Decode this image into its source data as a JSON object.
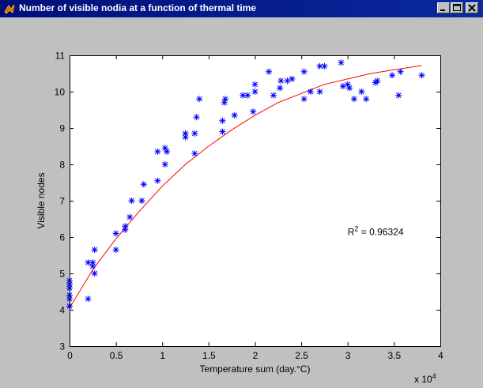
{
  "window": {
    "title": "Number of visible nodia at a function of thermal time",
    "minimize_glyph": "minimize-icon",
    "maximize_glyph": "maximize-icon",
    "close_glyph": "close-icon"
  },
  "colors": {
    "titlebar": "#0a2a9e",
    "figure_bg": "#c0c0c0",
    "axes_bg": "#ffffff",
    "points": "#0000ff",
    "fit_line": "#ff0000"
  },
  "chart_data": {
    "type": "scatter",
    "title": "",
    "xlabel": "Temperature sum (day.°C)",
    "ylabel": "Visible nodes",
    "x_multiplier_label": "x 10",
    "x_multiplier_exponent": "4",
    "xlim": [
      0,
      4
    ],
    "ylim": [
      3,
      11
    ],
    "x_ticks": [
      "0",
      "0.5",
      "1",
      "1.5",
      "2",
      "2.5",
      "3",
      "3.5",
      "4"
    ],
    "y_ticks": [
      "3",
      "4",
      "5",
      "6",
      "7",
      "8",
      "9",
      "10",
      "11"
    ],
    "grid": false,
    "annotation": {
      "text_prefix": "R",
      "superscript": "2",
      "text_suffix": " = 0.96324",
      "x": 3.0,
      "y": 6.05
    },
    "series": [
      {
        "marker": "asterisk",
        "points": [
          [
            0.0,
            4.1
          ],
          [
            0.0,
            4.3
          ],
          [
            0.0,
            4.4
          ],
          [
            0.0,
            4.6
          ],
          [
            0.0,
            4.7
          ],
          [
            0.0,
            4.8
          ],
          [
            0.2,
            4.3
          ],
          [
            0.2,
            5.3
          ],
          [
            0.25,
            5.3
          ],
          [
            0.25,
            5.2
          ],
          [
            0.27,
            5.0
          ],
          [
            0.27,
            5.65
          ],
          [
            0.5,
            5.65
          ],
          [
            0.5,
            6.1
          ],
          [
            0.6,
            6.2
          ],
          [
            0.6,
            6.3
          ],
          [
            0.65,
            6.55
          ],
          [
            0.67,
            7.0
          ],
          [
            0.78,
            7.0
          ],
          [
            0.8,
            7.45
          ],
          [
            0.95,
            7.55
          ],
          [
            0.95,
            8.35
          ],
          [
            1.03,
            8.0
          ],
          [
            1.03,
            8.45
          ],
          [
            1.05,
            8.35
          ],
          [
            1.25,
            8.75
          ],
          [
            1.25,
            8.85
          ],
          [
            1.35,
            8.3
          ],
          [
            1.35,
            8.85
          ],
          [
            1.37,
            9.3
          ],
          [
            1.4,
            9.8
          ],
          [
            1.65,
            8.9
          ],
          [
            1.65,
            9.2
          ],
          [
            1.67,
            9.7
          ],
          [
            1.68,
            9.8
          ],
          [
            1.78,
            9.35
          ],
          [
            1.87,
            9.9
          ],
          [
            1.92,
            9.9
          ],
          [
            1.98,
            9.45
          ],
          [
            2.0,
            10.0
          ],
          [
            2.0,
            10.2
          ],
          [
            2.15,
            10.55
          ],
          [
            2.2,
            9.9
          ],
          [
            2.27,
            10.1
          ],
          [
            2.28,
            10.3
          ],
          [
            2.35,
            10.3
          ],
          [
            2.4,
            10.35
          ],
          [
            2.53,
            9.8
          ],
          [
            2.53,
            10.55
          ],
          [
            2.6,
            10.0
          ],
          [
            2.7,
            10.0
          ],
          [
            2.7,
            10.7
          ],
          [
            2.75,
            10.7
          ],
          [
            2.93,
            10.8
          ],
          [
            2.95,
            10.15
          ],
          [
            3.0,
            10.2
          ],
          [
            3.02,
            10.1
          ],
          [
            3.07,
            9.8
          ],
          [
            3.15,
            10.0
          ],
          [
            3.2,
            9.8
          ],
          [
            3.3,
            10.25
          ],
          [
            3.32,
            10.3
          ],
          [
            3.48,
            10.45
          ],
          [
            3.55,
            9.9
          ],
          [
            3.57,
            10.55
          ],
          [
            3.8,
            10.45
          ]
        ]
      },
      {
        "marker": "line",
        "points": [
          [
            0.0,
            4.05
          ],
          [
            0.25,
            5.1
          ],
          [
            0.5,
            5.95
          ],
          [
            0.75,
            6.7
          ],
          [
            1.0,
            7.4
          ],
          [
            1.25,
            8.0
          ],
          [
            1.5,
            8.5
          ],
          [
            1.75,
            8.95
          ],
          [
            2.0,
            9.35
          ],
          [
            2.25,
            9.7
          ],
          [
            2.5,
            9.95
          ],
          [
            2.75,
            10.2
          ],
          [
            3.0,
            10.35
          ],
          [
            3.25,
            10.5
          ],
          [
            3.5,
            10.6
          ],
          [
            3.8,
            10.72
          ]
        ]
      }
    ]
  }
}
